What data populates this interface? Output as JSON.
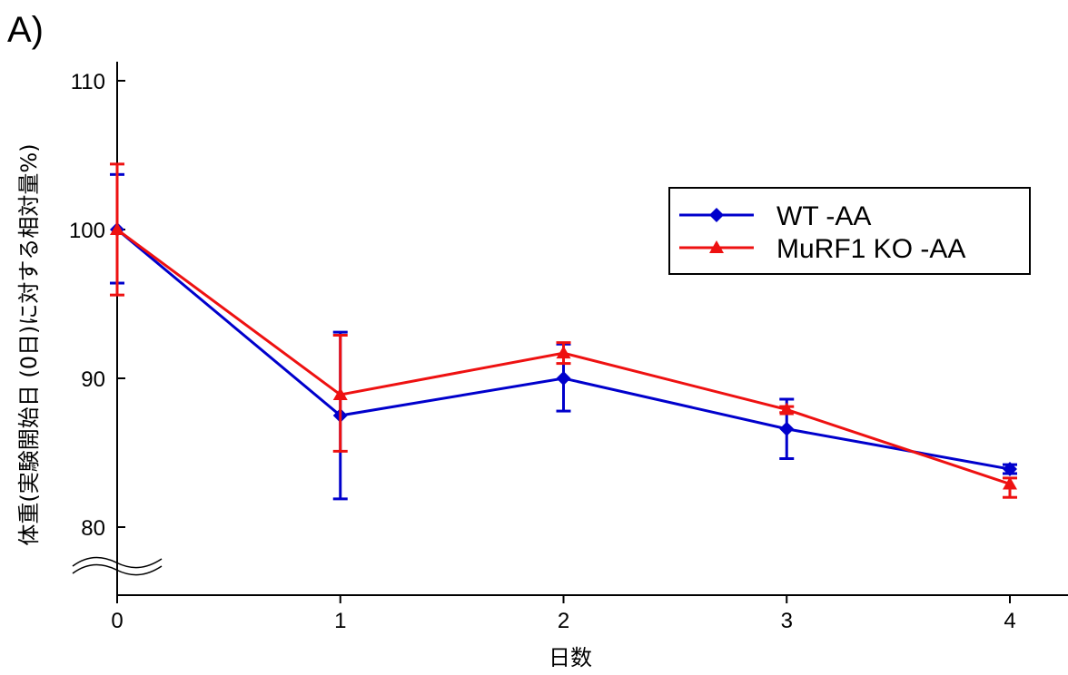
{
  "panel_label": "A)",
  "chart_data": {
    "type": "line",
    "title": "",
    "xlabel": "日数",
    "ylabel": "体重(実験開始日 (0日)に対する相対量%)",
    "x": [
      0,
      1,
      2,
      3,
      4
    ],
    "xticks": [
      "0",
      "1",
      "2",
      "3",
      "4"
    ],
    "yticks": [
      "80",
      "90",
      "100",
      "110"
    ],
    "ylim": [
      76,
      112
    ],
    "y_axis_break": true,
    "grid": false,
    "legend_position": "top-right",
    "series": [
      {
        "name": "WT -AA",
        "color": "#0000cc",
        "marker": "diamond",
        "values": [
          100,
          87.5,
          90,
          86.6,
          83.9
        ],
        "err_upper": [
          103.7,
          93.1,
          92.3,
          88.6,
          84.2
        ],
        "err_lower": [
          96.4,
          81.9,
          87.8,
          84.6,
          83.6
        ]
      },
      {
        "name": "MuRF1 KO -AA",
        "color": "#ee1111",
        "marker": "triangle",
        "values": [
          100,
          88.9,
          91.7,
          87.9,
          82.9
        ],
        "err_upper": [
          104.4,
          92.9,
          92.4,
          88.1,
          83.3
        ],
        "err_lower": [
          95.6,
          85.1,
          91.0,
          87.7,
          82.0
        ]
      }
    ]
  }
}
